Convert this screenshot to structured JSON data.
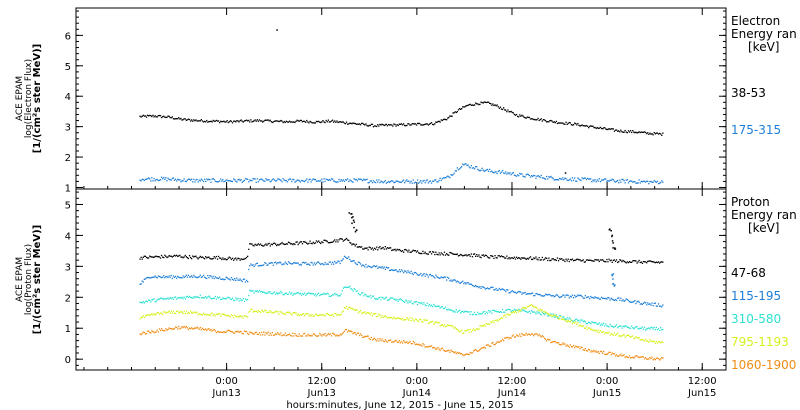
{
  "chart_data": [
    {
      "type": "scatter",
      "panel": "electron",
      "ylabel_lines": [
        "ACE EPAM",
        "log(Electron Flux)",
        "[1/(cm²s ster MeV)]"
      ],
      "legend_title_lines": [
        "Electron",
        "Energy ran",
        "[keV]"
      ],
      "ylim": [
        0.95,
        6.9
      ],
      "yticks": [
        1,
        2,
        3,
        4,
        5,
        6
      ],
      "series": [
        {
          "name": "38-53",
          "color": "#000000",
          "points": [
            [
              0,
              3.35
            ],
            [
              3,
              3.37
            ],
            [
              6,
              3.33
            ],
            [
              9,
              3.25
            ],
            [
              12,
              3.22
            ],
            [
              15,
              3.2
            ],
            [
              18,
              3.18
            ],
            [
              21,
              3.2
            ],
            [
              24,
              3.22
            ],
            [
              27,
              3.2
            ],
            [
              30,
              3.18
            ],
            [
              33,
              3.2
            ],
            [
              36,
              3.17
            ],
            [
              39,
              3.2
            ],
            [
              42,
              3.15
            ],
            [
              45,
              3.1
            ],
            [
              48,
              3.05
            ],
            [
              51,
              3.07
            ],
            [
              54,
              3.08
            ],
            [
              57,
              3.1
            ],
            [
              60,
              3.12
            ],
            [
              63,
              3.3
            ],
            [
              65,
              3.55
            ],
            [
              67,
              3.72
            ],
            [
              69,
              3.78
            ],
            [
              71,
              3.8
            ],
            [
              73,
              3.7
            ],
            [
              75,
              3.55
            ],
            [
              77,
              3.4
            ],
            [
              80,
              3.3
            ],
            [
              83,
              3.22
            ],
            [
              86,
              3.15
            ],
            [
              89,
              3.1
            ],
            [
              92,
              3.02
            ],
            [
              95,
              2.95
            ],
            [
              98,
              2.88
            ],
            [
              101,
              2.85
            ],
            [
              104,
              2.8
            ],
            [
              107,
              2.77
            ]
          ]
        },
        {
          "name": "175-315",
          "color": "#1e7fd8",
          "points": [
            [
              0,
              1.3
            ],
            [
              5,
              1.3
            ],
            [
              10,
              1.25
            ],
            [
              15,
              1.25
            ],
            [
              20,
              1.25
            ],
            [
              25,
              1.25
            ],
            [
              30,
              1.25
            ],
            [
              35,
              1.25
            ],
            [
              40,
              1.25
            ],
            [
              45,
              1.25
            ],
            [
              50,
              1.22
            ],
            [
              55,
              1.22
            ],
            [
              60,
              1.22
            ],
            [
              63,
              1.35
            ],
            [
              65,
              1.65
            ],
            [
              66,
              1.78
            ],
            [
              68,
              1.7
            ],
            [
              70,
              1.6
            ],
            [
              72,
              1.55
            ],
            [
              75,
              1.5
            ],
            [
              78,
              1.42
            ],
            [
              81,
              1.38
            ],
            [
              85,
              1.32
            ],
            [
              90,
              1.28
            ],
            [
              95,
              1.25
            ],
            [
              100,
              1.22
            ],
            [
              104,
              1.2
            ],
            [
              107,
              1.2
            ]
          ]
        }
      ],
      "outliers": [
        [
          28,
          6.2
        ],
        [
          87,
          1.5
        ]
      ]
    },
    {
      "type": "scatter",
      "panel": "proton",
      "ylabel_lines": [
        "ACE EPAM",
        "log(Proton Flux)",
        "[1/(cm²s ster MeV)]"
      ],
      "legend_title_lines": [
        "Proton",
        "Energy ran",
        "[keV]"
      ],
      "ylim": [
        -0.35,
        5.5
      ],
      "yticks": [
        0,
        1,
        2,
        3,
        4,
        5
      ],
      "series": [
        {
          "name": "47-68",
          "color": "#000000",
          "points": [
            [
              0,
              3.3
            ],
            [
              4,
              3.33
            ],
            [
              8,
              3.35
            ],
            [
              12,
              3.3
            ],
            [
              16,
              3.3
            ],
            [
              20,
              3.25
            ],
            [
              22,
              3.3
            ],
            [
              22.3,
              3.7
            ],
            [
              26,
              3.72
            ],
            [
              30,
              3.75
            ],
            [
              34,
              3.78
            ],
            [
              38,
              3.82
            ],
            [
              40,
              3.85
            ],
            [
              42,
              3.9
            ],
            [
              44,
              3.7
            ],
            [
              46,
              3.6
            ],
            [
              48,
              3.6
            ],
            [
              50,
              3.62
            ],
            [
              52,
              3.55
            ],
            [
              56,
              3.5
            ],
            [
              60,
              3.45
            ],
            [
              64,
              3.42
            ],
            [
              68,
              3.38
            ],
            [
              72,
              3.32
            ],
            [
              76,
              3.3
            ],
            [
              80,
              3.28
            ],
            [
              84,
              3.25
            ],
            [
              88,
              3.22
            ],
            [
              92,
              3.2
            ],
            [
              96,
              3.2
            ],
            [
              100,
              3.18
            ],
            [
              104,
              3.15
            ],
            [
              107,
              3.15
            ]
          ]
        },
        {
          "name": "115-195",
          "color": "#1e7fd8",
          "points": [
            [
              0,
              2.45
            ],
            [
              2,
              2.7
            ],
            [
              4,
              2.68
            ],
            [
              8,
              2.68
            ],
            [
              12,
              2.7
            ],
            [
              16,
              2.65
            ],
            [
              20,
              2.6
            ],
            [
              22,
              2.55
            ],
            [
              22.3,
              3.05
            ],
            [
              26,
              3.1
            ],
            [
              30,
              3.12
            ],
            [
              34,
              3.1
            ],
            [
              38,
              3.12
            ],
            [
              41,
              3.15
            ],
            [
              42,
              3.35
            ],
            [
              44,
              3.15
            ],
            [
              46,
              3.05
            ],
            [
              50,
              2.95
            ],
            [
              54,
              2.85
            ],
            [
              58,
              2.75
            ],
            [
              62,
              2.65
            ],
            [
              66,
              2.5
            ],
            [
              70,
              2.35
            ],
            [
              74,
              2.25
            ],
            [
              78,
              2.15
            ],
            [
              82,
              2.1
            ],
            [
              86,
              2.05
            ],
            [
              90,
              2.05
            ],
            [
              94,
              2.0
            ],
            [
              98,
              1.95
            ],
            [
              102,
              1.85
            ],
            [
              107,
              1.75
            ]
          ]
        },
        {
          "name": "310-580",
          "color": "#2de0d2",
          "points": [
            [
              0,
              1.85
            ],
            [
              4,
              1.95
            ],
            [
              8,
              2.0
            ],
            [
              12,
              2.05
            ],
            [
              16,
              2.0
            ],
            [
              20,
              1.95
            ],
            [
              22,
              1.92
            ],
            [
              22.3,
              2.2
            ],
            [
              26,
              2.18
            ],
            [
              30,
              2.15
            ],
            [
              34,
              2.12
            ],
            [
              38,
              2.1
            ],
            [
              41,
              2.1
            ],
            [
              42,
              2.4
            ],
            [
              45,
              2.15
            ],
            [
              48,
              2.0
            ],
            [
              52,
              1.95
            ],
            [
              56,
              1.85
            ],
            [
              60,
              1.75
            ],
            [
              64,
              1.6
            ],
            [
              68,
              1.5
            ],
            [
              72,
              1.55
            ],
            [
              76,
              1.6
            ],
            [
              80,
              1.55
            ],
            [
              84,
              1.45
            ],
            [
              88,
              1.3
            ],
            [
              92,
              1.2
            ],
            [
              96,
              1.1
            ],
            [
              100,
              1.05
            ],
            [
              104,
              1.0
            ],
            [
              107,
              1.0
            ]
          ]
        },
        {
          "name": "795-1193",
          "color": "#d6f01e",
          "points": [
            [
              0,
              1.35
            ],
            [
              4,
              1.5
            ],
            [
              8,
              1.55
            ],
            [
              12,
              1.5
            ],
            [
              16,
              1.45
            ],
            [
              20,
              1.4
            ],
            [
              22,
              1.38
            ],
            [
              22.3,
              1.6
            ],
            [
              26,
              1.55
            ],
            [
              30,
              1.5
            ],
            [
              34,
              1.45
            ],
            [
              38,
              1.45
            ],
            [
              41,
              1.45
            ],
            [
              42,
              1.7
            ],
            [
              45,
              1.55
            ],
            [
              48,
              1.45
            ],
            [
              52,
              1.35
            ],
            [
              56,
              1.3
            ],
            [
              60,
              1.2
            ],
            [
              64,
              1.05
            ],
            [
              66,
              0.9
            ],
            [
              68,
              0.95
            ],
            [
              72,
              1.2
            ],
            [
              76,
              1.5
            ],
            [
              80,
              1.75
            ],
            [
              82,
              1.6
            ],
            [
              84,
              1.45
            ],
            [
              88,
              1.25
            ],
            [
              92,
              1.0
            ],
            [
              96,
              0.85
            ],
            [
              100,
              0.75
            ],
            [
              104,
              0.6
            ],
            [
              107,
              0.55
            ]
          ]
        },
        {
          "name": "1060-1900",
          "color": "#f08c14",
          "points": [
            [
              0,
              0.85
            ],
            [
              4,
              0.95
            ],
            [
              8,
              1.05
            ],
            [
              12,
              1.0
            ],
            [
              16,
              0.92
            ],
            [
              20,
              0.9
            ],
            [
              22,
              0.88
            ],
            [
              22.3,
              0.85
            ],
            [
              26,
              0.85
            ],
            [
              30,
              0.82
            ],
            [
              34,
              0.8
            ],
            [
              38,
              0.8
            ],
            [
              41,
              0.82
            ],
            [
              42,
              0.95
            ],
            [
              45,
              0.8
            ],
            [
              48,
              0.65
            ],
            [
              52,
              0.6
            ],
            [
              56,
              0.55
            ],
            [
              60,
              0.4
            ],
            [
              64,
              0.25
            ],
            [
              66,
              0.15
            ],
            [
              68,
              0.25
            ],
            [
              72,
              0.5
            ],
            [
              76,
              0.75
            ],
            [
              80,
              0.85
            ],
            [
              82,
              0.75
            ],
            [
              84,
              0.6
            ],
            [
              88,
              0.45
            ],
            [
              92,
              0.3
            ],
            [
              96,
              0.2
            ],
            [
              100,
              0.1
            ],
            [
              104,
              0.05
            ],
            [
              107,
              0.02
            ]
          ]
        }
      ],
      "spikes": [
        {
          "series": 0,
          "points": [
            [
              43,
              4.7
            ],
            [
              43.6,
              4.5
            ],
            [
              44,
              4.2
            ],
            [
              96.2,
              4.3
            ],
            [
              96.6,
              3.9
            ],
            [
              97,
              3.5
            ]
          ]
        },
        {
          "series": 1,
          "points": [
            [
              96.5,
              2.7
            ],
            [
              97,
              2.45
            ]
          ]
        }
      ]
    }
  ],
  "x_axis": {
    "start": "2015-06-12 05:00",
    "end": "2015-06-15 15:00",
    "ticks": [
      {
        "hour": 19,
        "time": "0:00",
        "date": "Jun13"
      },
      {
        "hour": 31,
        "time": "12:00",
        "date": "Jun13"
      },
      {
        "hour": 43,
        "time": "0:00",
        "date": "Jun14"
      },
      {
        "hour": 55,
        "time": "12:00",
        "date": "Jun14"
      },
      {
        "hour": 67,
        "time": "0:00",
        "date": "Jun15"
      },
      {
        "hour": 79,
        "time": "12:00",
        "date": "Jun15"
      }
    ],
    "label": "hours:minutes, June 12, 2015 - June 15, 2015"
  },
  "colors": {
    "axis": "#000000",
    "background": "#ffffff"
  }
}
